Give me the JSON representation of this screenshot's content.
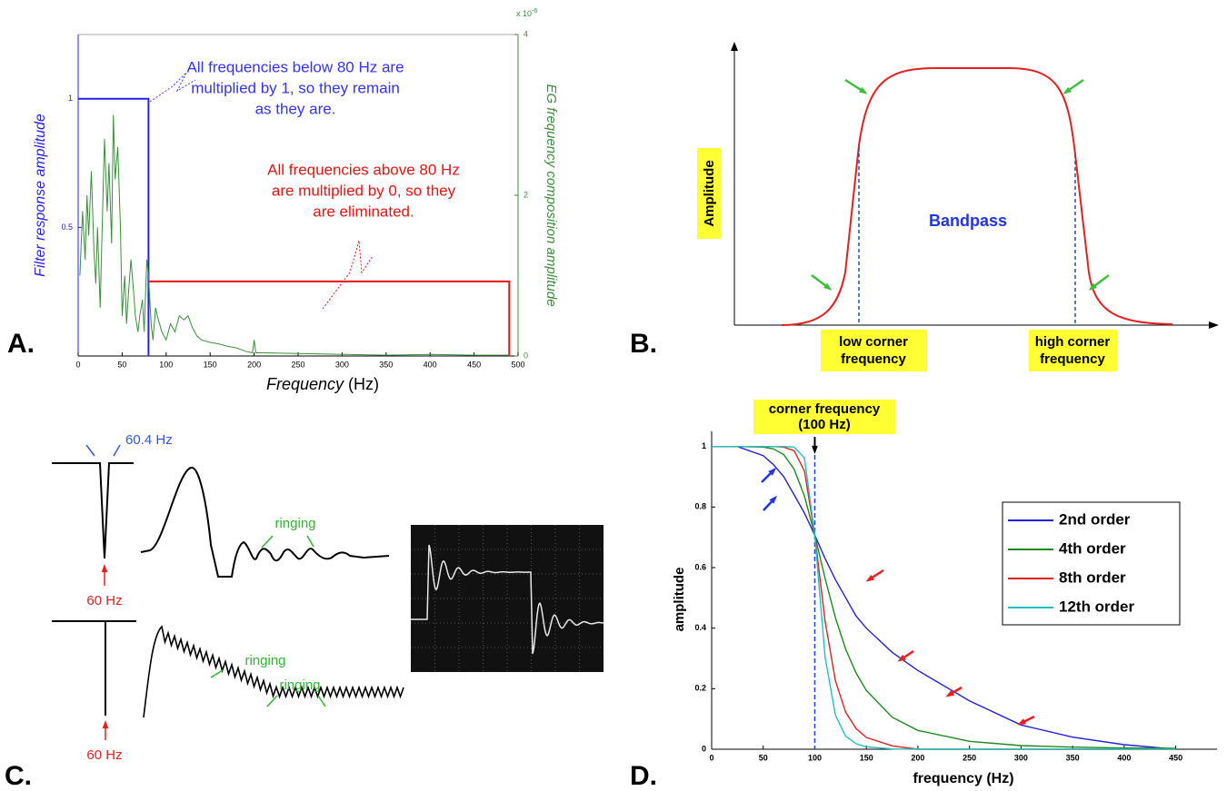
{
  "chart_data": [
    {
      "type": "line",
      "panel_label": "A.",
      "xlabel": "Frequency",
      "xlabel_unit": "(Hz)",
      "ylabel": "Filter response amplitude",
      "y2label": "EG frequency composition amplitude",
      "y2_scale_label": "x 10",
      "y2_scale_exponent": "-6",
      "xlim": [
        0,
        500
      ],
      "xticks": [
        0,
        50,
        100,
        150,
        200,
        250,
        300,
        350,
        400,
        450,
        500
      ],
      "ylim": [
        0,
        1.25
      ],
      "yticks": [
        0.5,
        1
      ],
      "y2lim": [
        0,
        4
      ],
      "y2ticks": [
        0,
        2,
        4
      ],
      "series": [
        {
          "color": "#2222ee",
          "x": [
            0,
            80,
            80
          ],
          "values": [
            1,
            1,
            0
          ]
        },
        {
          "color": "#ee1111",
          "x": [
            80,
            490,
            490
          ],
          "values": [
            0.29,
            0.29,
            0
          ]
        },
        {
          "color": "#3a8f3a",
          "axis": "y2",
          "x": [
            2,
            5,
            8,
            10,
            12,
            15,
            18,
            20,
            22,
            25,
            28,
            30,
            33,
            35,
            38,
            40,
            42,
            45,
            48,
            50,
            53,
            55,
            58,
            60,
            63,
            65,
            68,
            70,
            73,
            75,
            78,
            80,
            83,
            85,
            88,
            90,
            95,
            100,
            105,
            110,
            115,
            120,
            125,
            130,
            135,
            140,
            150,
            160,
            170,
            180,
            190,
            198,
            200,
            202,
            210,
            250,
            300,
            350,
            400,
            450,
            490
          ],
          "values": [
            1.0,
            1.8,
            1.2,
            2.0,
            1.5,
            2.3,
            1.3,
            0.9,
            1.6,
            0.6,
            1.9,
            2.7,
            1.8,
            2.4,
            1.4,
            3.0,
            2.2,
            2.6,
            1.6,
            0.5,
            1.0,
            0.4,
            0.9,
            1.2,
            0.8,
            0.5,
            0.3,
            0.5,
            0.7,
            0.3,
            1.2,
            1.0,
            0.4,
            0.2,
            0.6,
            0.5,
            0.3,
            0.2,
            0.4,
            0.3,
            0.5,
            0.45,
            0.5,
            0.35,
            0.25,
            0.2,
            0.17,
            0.15,
            0.12,
            0.1,
            0.06,
            0.04,
            0.2,
            0.04,
            0.04,
            0.03,
            0.02,
            0.01,
            0.02,
            0.01,
            0.01
          ]
        }
      ],
      "annotations": [
        {
          "lines": [
            "All frequencies below 80 Hz are",
            "multiplied by 1, so they remain",
            "as they are."
          ],
          "color": "#3333ff"
        },
        {
          "lines": [
            "All frequencies above 80 Hz",
            "are multiplied by 0, so they",
            "are eliminated."
          ],
          "color": "#ee1111"
        }
      ]
    },
    {
      "type": "line",
      "panel_label": "D.",
      "xlabel": "frequency (Hz)",
      "ylabel": "amplitude",
      "xlim": [
        0,
        490
      ],
      "xticks": [
        0,
        50,
        100,
        150,
        200,
        250,
        300,
        350,
        400,
        450
      ],
      "ylim": [
        0,
        1.05
      ],
      "yticks": [
        0,
        0.2,
        0.4,
        0.6,
        0.8,
        1
      ],
      "x": [
        0,
        25,
        50,
        60,
        70,
        80,
        90,
        100,
        110,
        120,
        130,
        140,
        150,
        175,
        200,
        250,
        300,
        350,
        400,
        450
      ],
      "series": [
        {
          "name": "2nd order",
          "color": "#2222dd",
          "values": [
            1,
            1,
            0.97,
            0.94,
            0.9,
            0.84,
            0.78,
            0.707,
            0.63,
            0.56,
            0.5,
            0.44,
            0.4,
            0.32,
            0.26,
            0.16,
            0.08,
            0.04,
            0.015,
            0
          ]
        },
        {
          "name": "4th order",
          "color": "#1e8a1e",
          "values": [
            1,
            1,
            0.998,
            0.992,
            0.973,
            0.925,
            0.836,
            0.707,
            0.564,
            0.434,
            0.33,
            0.252,
            0.194,
            0.106,
            0.062,
            0.026,
            0.012,
            0.007,
            0.004,
            0.003
          ]
        },
        {
          "name": "8th order",
          "color": "#e62020",
          "values": [
            1,
            1,
            1,
            1,
            0.998,
            0.986,
            0.919,
            0.707,
            0.423,
            0.226,
            0.122,
            0.068,
            0.039,
            0.011,
            0,
            0,
            0,
            0,
            0,
            0
          ]
        },
        {
          "name": "12th order",
          "color": "#20c0c0",
          "values": [
            1,
            1,
            1,
            1,
            1,
            0.998,
            0.962,
            0.707,
            0.304,
            0.112,
            0.043,
            0.018,
            0.008,
            0.001,
            0,
            0,
            0,
            0,
            0,
            0
          ]
        }
      ],
      "legend": "upper right",
      "corner_frequency": 100,
      "corner_label": [
        "corner frequency",
        "(100 Hz)"
      ]
    }
  ],
  "panel_b": {
    "panel_label": "B.",
    "ylabel": "Amplitude",
    "band_label": "Bandpass",
    "low_corner_label": [
      "low corner",
      "frequency"
    ],
    "high_corner_label": [
      "high corner",
      "frequency"
    ]
  },
  "panel_c": {
    "panel_label": "C.",
    "notch_width_label": "60.4 Hz",
    "notch_label_top": "60 Hz",
    "ringing_labels": [
      "ringing",
      "ringing",
      "ringing"
    ],
    "notch_label_bottom": "60 Hz"
  }
}
